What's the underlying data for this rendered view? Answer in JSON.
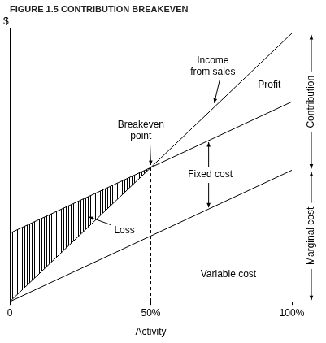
{
  "chart_data": {
    "type": "line",
    "title": "FIGURE 1.5 CONTRIBUTION BREAKEVEN",
    "x_label": "Activity",
    "y_label": "$",
    "x": [
      0,
      100
    ],
    "series": [
      {
        "values": [
          0,
          98
        ],
        "color": "#000000"
      },
      {
        "values": [
          25,
          73
        ],
        "color": "#000000"
      },
      {
        "values": [
          0,
          48
        ],
        "color": "#000000"
      }
    ],
    "xlim": [
      0,
      100
    ],
    "xticks": [
      0,
      {
        "value": 50,
        "label": "50%"
      },
      {
        "value": 100,
        "label": "100%"
      }
    ],
    "ylim": [
      0,
      100
    ],
    "grid": false,
    "tick_labels": "x",
    "annotations": [
      "Income from sales",
      "Profit",
      "Breakeven point",
      "Fixed cost",
      "Loss",
      "Variable cost",
      "Contribution",
      "Marginal cost"
    ]
  }
}
